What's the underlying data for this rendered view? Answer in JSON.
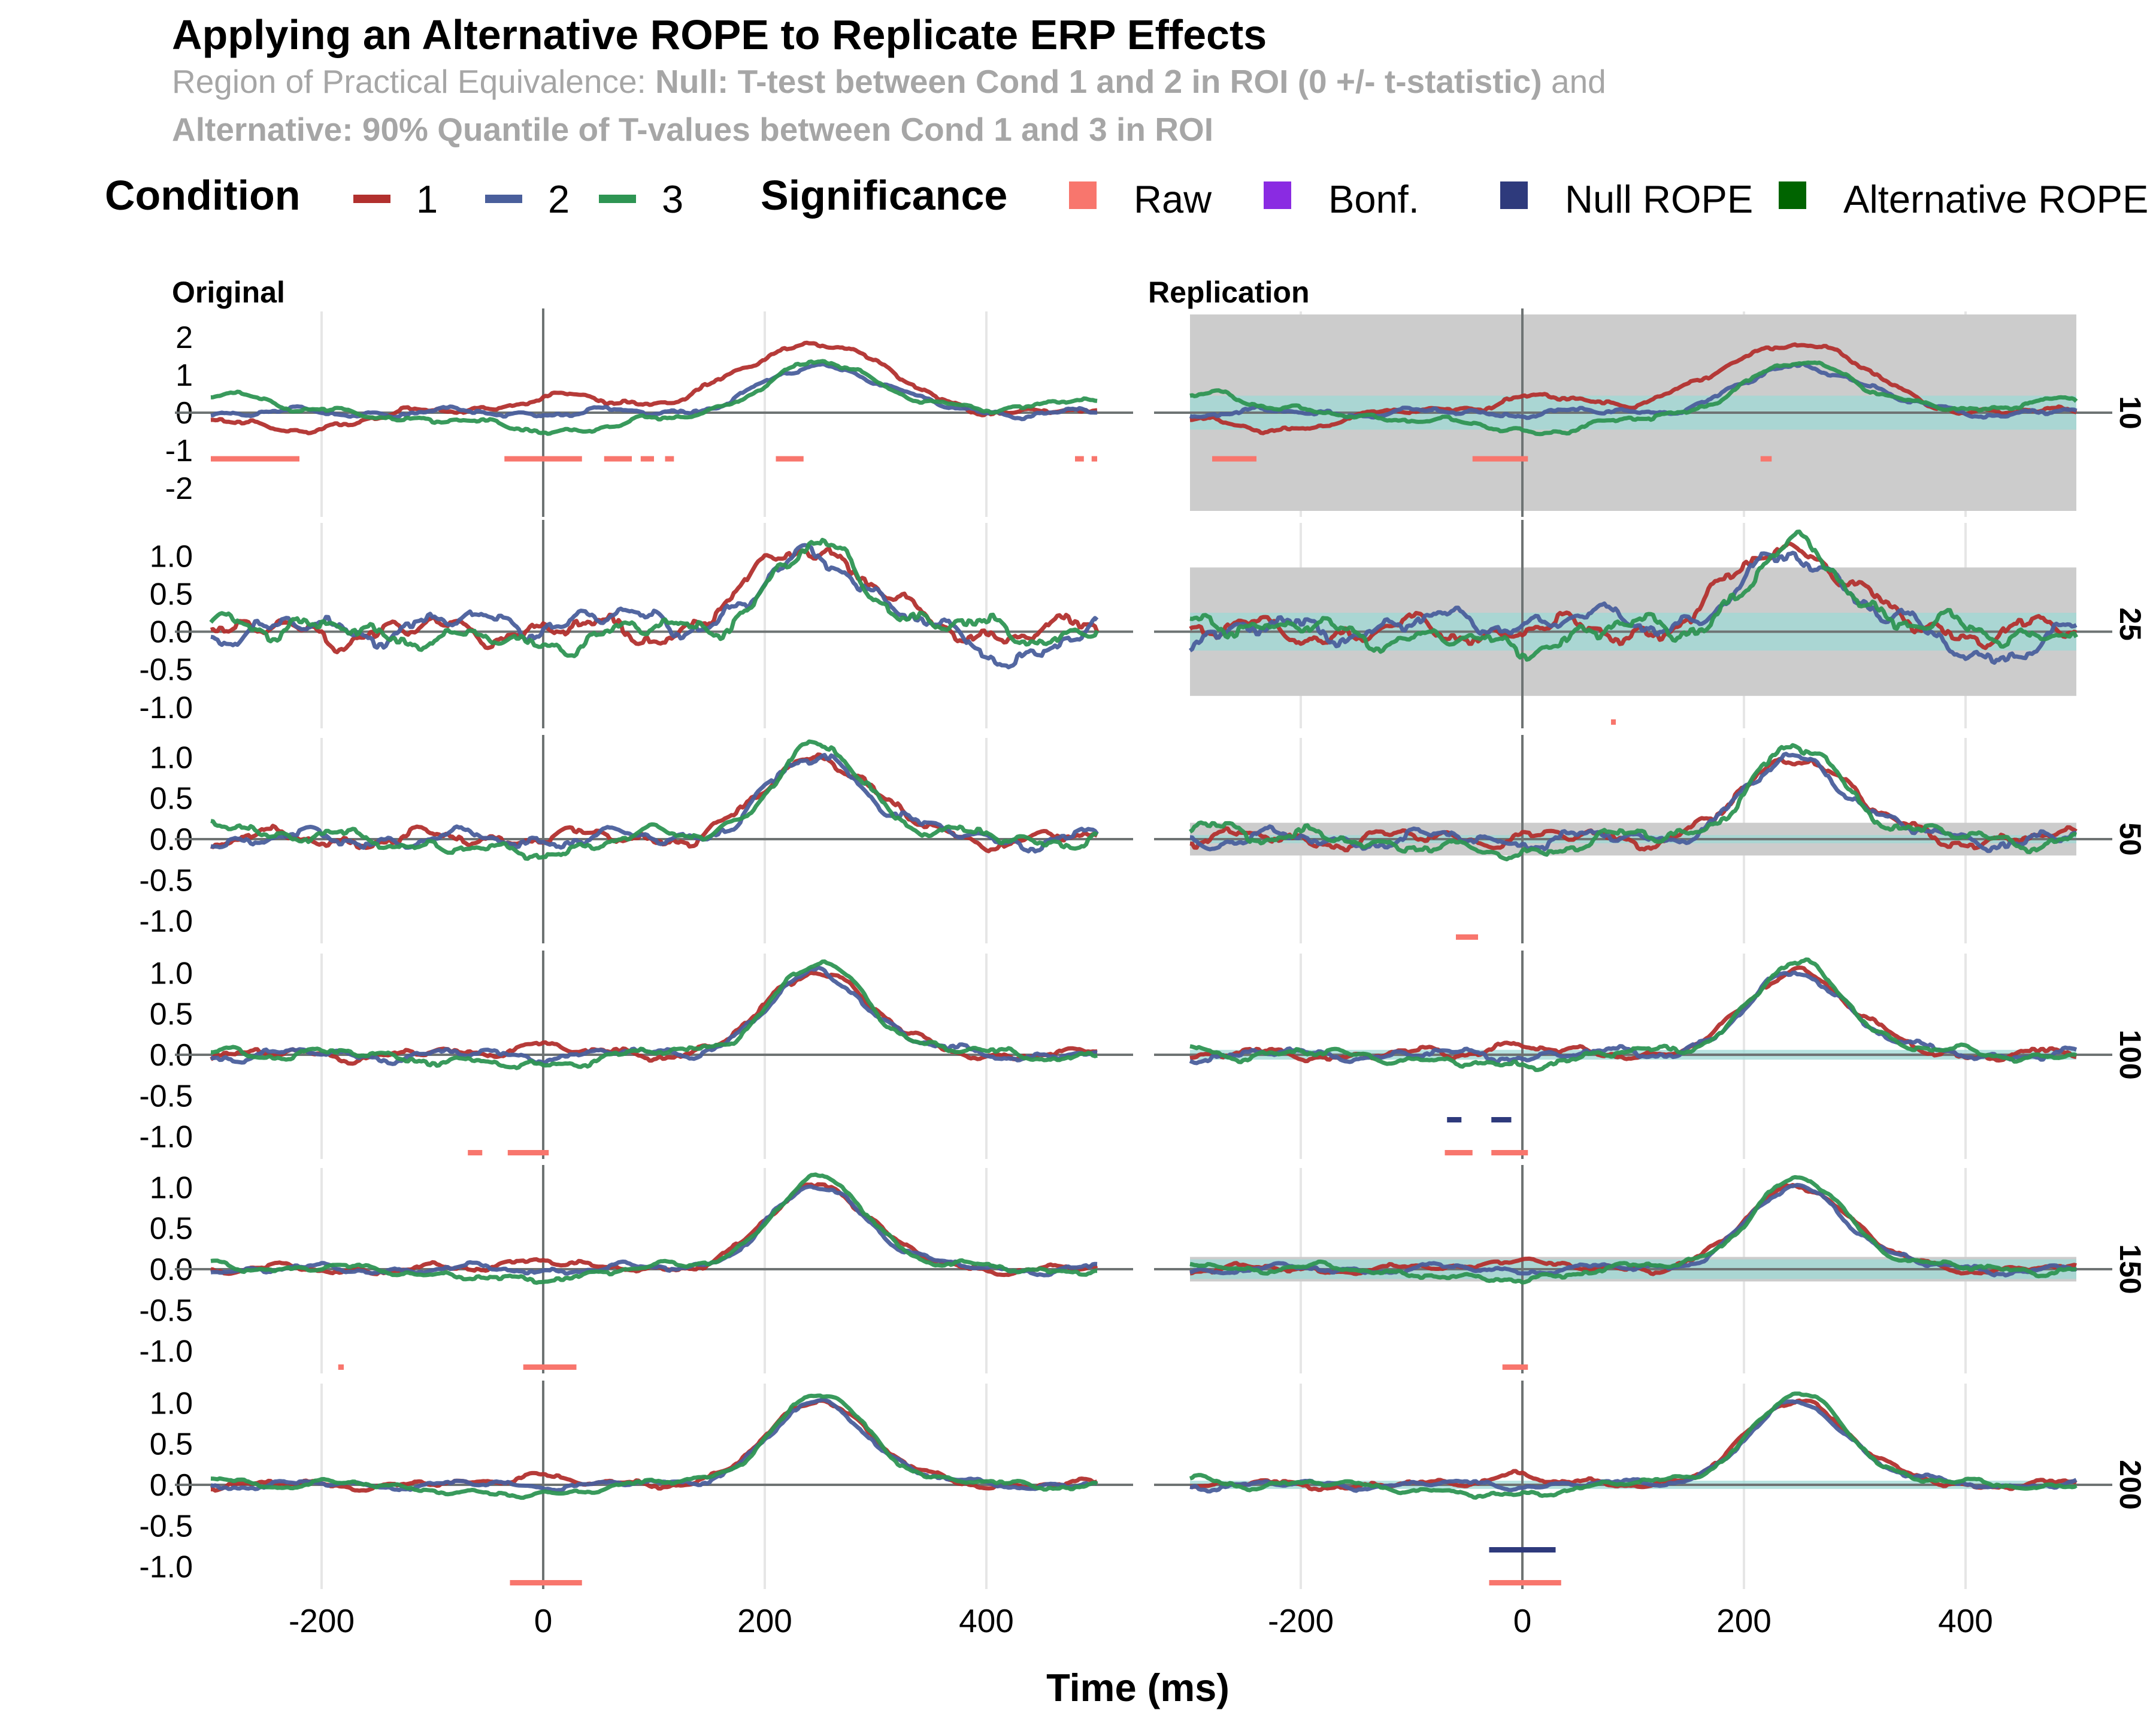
{
  "chart_data": {
    "type": "line",
    "title": "Applying an Alternative ROPE to Replicate ERP Effects",
    "subtitle": {
      "line1_prefix": "Region of Practical Equivalence: ",
      "line1_bold": "Null: T-test between Cond 1 and 2 in ROI (0 +/- t-statistic)",
      "line1_suffix": " and",
      "line2_bold": "Alternative: 90% Quantile of T-values between Cond 1 and 3 in ROI"
    },
    "xlabel": "Time (ms)",
    "ylabel": "",
    "xlim": [
      -300,
      500
    ],
    "x_ticks": [
      -200,
      0,
      200,
      400
    ],
    "x_tick_labels": [
      "-200",
      "0",
      "200",
      "400"
    ],
    "grid": "vertical major lines only",
    "legend": {
      "position": "top",
      "condition_title": "Condition",
      "conditions": [
        {
          "label": "1",
          "color": "#b2302e"
        },
        {
          "label": "2",
          "color": "#4a5f9c"
        },
        {
          "label": "3",
          "color": "#2e9553"
        }
      ],
      "significance_title": "Significance",
      "significance": [
        {
          "label": "Raw",
          "color": "#f8766d"
        },
        {
          "label": "Bonf.",
          "color": "#8a2be2"
        },
        {
          "label": "Null ROPE",
          "color": "#2e3a7c"
        },
        {
          "label": "Alternative ROPE",
          "color": "#006400"
        }
      ]
    },
    "columns": [
      "Original",
      "Replication"
    ],
    "rows": [
      {
        "strip": "10",
        "ylim": [
          -2.6,
          2.6
        ],
        "y_ticks": [
          -2,
          -1,
          0,
          1,
          2
        ],
        "y_tick_labels": [
          "-2",
          "-1",
          "0",
          "1",
          "2"
        ],
        "alt_rope": [
          -2.6,
          2.6
        ],
        "null_rope": [
          -0.45,
          0.45
        ],
        "sig_raw": {
          "original": [
            [
              -300,
              -220
            ],
            [
              -35,
              35
            ],
            [
              55,
              80
            ],
            [
              88,
              100
            ],
            [
              110,
              118
            ],
            [
              210,
              235
            ],
            [
              480,
              488
            ],
            [
              495,
              500
            ]
          ],
          "replication": [
            [
              -280,
              -240
            ],
            [
              -45,
              5
            ],
            [
              215,
              225
            ]
          ]
        },
        "sig_null_rope": {
          "original": [],
          "replication": []
        }
      },
      {
        "strip": "25",
        "ylim": [
          -1.2,
          1.4
        ],
        "y_ticks": [
          -1,
          -0.5,
          0,
          0.5,
          1
        ],
        "y_tick_labels": [
          "-1.0",
          "-0.5",
          "0.0",
          "0.5",
          "1.0"
        ],
        "alt_rope": [
          -0.85,
          0.85
        ],
        "null_rope": [
          -0.25,
          0.25
        ],
        "sig_raw": {
          "original": [],
          "replication": [
            [
              80,
              84
            ]
          ]
        },
        "sig_null_rope": {
          "original": [],
          "replication": []
        }
      },
      {
        "strip": "50",
        "ylim": [
          -1.2,
          1.2
        ],
        "y_ticks": [
          -1,
          -0.5,
          0,
          0.5,
          1
        ],
        "y_tick_labels": [
          "-1.0",
          "-0.5",
          "0.0",
          "0.5",
          "1.0"
        ],
        "alt_rope": [
          -0.2,
          0.2
        ],
        "null_rope": [
          -0.05,
          0.05
        ],
        "sig_raw": {
          "original": [],
          "replication": [
            [
              -60,
              -40
            ]
          ]
        },
        "sig_null_rope": {
          "original": [],
          "replication": []
        }
      },
      {
        "strip": "100",
        "ylim": [
          -1.2,
          1.2
        ],
        "y_ticks": [
          -1,
          -0.5,
          0,
          0.5,
          1
        ],
        "y_tick_labels": [
          "-1.0",
          "-0.5",
          "0.0",
          "0.5",
          "1.0"
        ],
        "alt_rope": [
          -0.02,
          0.02
        ],
        "null_rope": [
          -0.06,
          0.06
        ],
        "sig_raw": {
          "original": [
            [
              -68,
              -55
            ],
            [
              -32,
              5
            ]
          ],
          "replication": [
            [
              -70,
              -45
            ],
            [
              -28,
              5
            ]
          ]
        },
        "sig_null_rope": {
          "original": [],
          "replication": [
            [
              -68,
              -55
            ],
            [
              -28,
              -10
            ]
          ]
        }
      },
      {
        "strip": "150",
        "ylim": [
          -1.2,
          1.2
        ],
        "y_ticks": [
          -1,
          -0.5,
          0,
          0.5,
          1
        ],
        "y_tick_labels": [
          "-1.0",
          "-0.5",
          "0.0",
          "0.5",
          "1.0"
        ],
        "alt_rope": [
          -0.15,
          0.15
        ],
        "null_rope": [
          -0.12,
          0.12
        ],
        "sig_raw": {
          "original": [
            [
              -185,
              -180
            ],
            [
              -18,
              30
            ]
          ],
          "replication": [
            [
              -18,
              5
            ]
          ]
        },
        "sig_null_rope": {
          "original": [],
          "replication": []
        }
      },
      {
        "strip": "200",
        "ylim": [
          -1.2,
          1.2
        ],
        "y_ticks": [
          -1,
          -0.5,
          0,
          0.5,
          1
        ],
        "y_tick_labels": [
          "-1.0",
          "-0.5",
          "0.0",
          "0.5",
          "1.0"
        ],
        "alt_rope": [
          -0.01,
          0.01
        ],
        "null_rope": [
          -0.05,
          0.05
        ],
        "sig_raw": {
          "original": [
            [
              -30,
              35
            ]
          ],
          "replication": [
            [
              -30,
              35
            ]
          ]
        },
        "sig_null_rope": {
          "original": [],
          "replication": [
            [
              -30,
              30
            ]
          ]
        }
      }
    ]
  }
}
